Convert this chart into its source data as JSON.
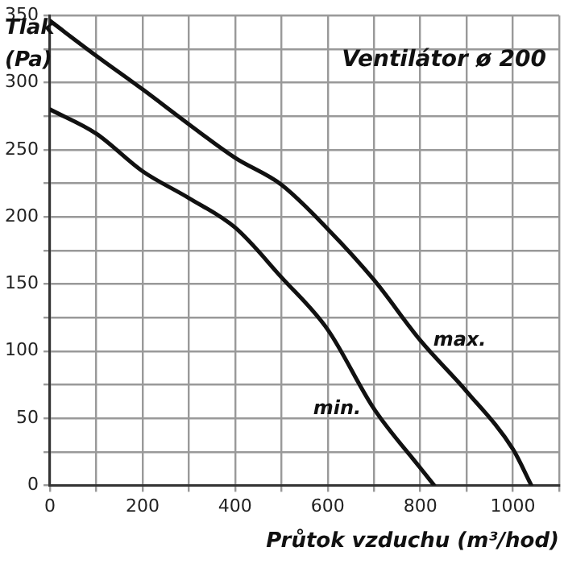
{
  "chart_data": {
    "type": "line",
    "title": "Ventilátor ø 200",
    "xlabel": "Průtok vzduchu (m³/hod)",
    "ylabel": "Tlak (Pa)",
    "xlim": [
      0,
      1100
    ],
    "ylim": [
      0,
      350
    ],
    "xticks": [
      0,
      {
        "value": 100,
        "label": null
      },
      200,
      {
        "value": 300,
        "label": null
      },
      400,
      {
        "value": 500,
        "label": null
      },
      600,
      {
        "value": 700,
        "label": null
      },
      800,
      {
        "value": 900,
        "label": null
      },
      1000,
      {
        "value": 1100,
        "label": null
      }
    ],
    "yticks": [
      0,
      {
        "value": 25,
        "label": null
      },
      50,
      {
        "value": 75,
        "label": null
      },
      100,
      {
        "value": 125,
        "label": null
      },
      150,
      {
        "value": 175,
        "label": null
      },
      200,
      {
        "value": 225,
        "label": null
      },
      250,
      {
        "value": 275,
        "label": null
      },
      300,
      {
        "value": 325,
        "label": null
      },
      350
    ],
    "grid": true,
    "legend": false,
    "marker": "none",
    "line_style": "solid",
    "series": [
      {
        "name": "max.",
        "color": "#111111",
        "x": [
          0,
          100,
          200,
          300,
          400,
          500,
          600,
          700,
          800,
          900,
          1000,
          1040
        ],
        "values": [
          346,
          320,
          295,
          269,
          244,
          224,
          191,
          153,
          108,
          70,
          27,
          0
        ]
      },
      {
        "name": "min.",
        "color": "#111111",
        "x": [
          0,
          100,
          200,
          300,
          400,
          500,
          600,
          700,
          800,
          830
        ],
        "values": [
          280,
          262,
          234,
          214,
          192,
          155,
          116,
          57,
          13,
          0
        ]
      }
    ]
  }
}
